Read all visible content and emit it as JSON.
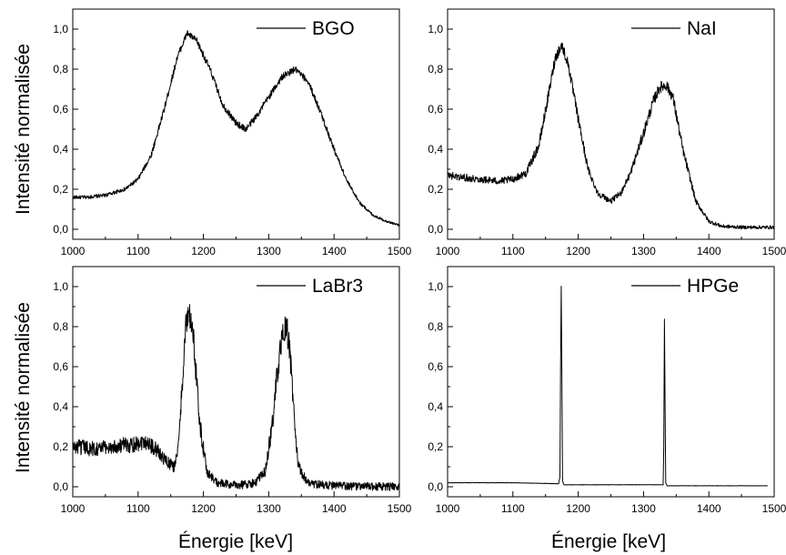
{
  "figure": {
    "ylabel": "Intensité normalisée",
    "xlabel": "Énergie [keV]"
  },
  "chart_data": [
    {
      "type": "line",
      "legend": "BGO",
      "legend_position": "top-right",
      "xlim": [
        1000,
        1500
      ],
      "ylim": [
        -0.05,
        1.1
      ],
      "xticks": [
        "1000",
        "1100",
        "1200",
        "1300",
        "1400",
        "1500"
      ],
      "yticks": [
        "0,0",
        "0,2",
        "0,4",
        "0,6",
        "0,8",
        "1,0"
      ],
      "grid": false,
      "noise": 0.012,
      "series": [
        {
          "name": "BGO",
          "x": [
            1000,
            1020,
            1050,
            1080,
            1100,
            1120,
            1140,
            1160,
            1175,
            1190,
            1210,
            1230,
            1250,
            1265,
            1280,
            1300,
            1320,
            1340,
            1360,
            1380,
            1400,
            1420,
            1440,
            1460,
            1480,
            1500
          ],
          "y": [
            0.16,
            0.16,
            0.17,
            0.2,
            0.25,
            0.37,
            0.6,
            0.86,
            0.98,
            0.94,
            0.8,
            0.62,
            0.53,
            0.5,
            0.56,
            0.66,
            0.76,
            0.8,
            0.74,
            0.58,
            0.4,
            0.24,
            0.13,
            0.07,
            0.04,
            0.02
          ]
        }
      ]
    },
    {
      "type": "line",
      "legend": "NaI",
      "legend_position": "top-right",
      "xlim": [
        1000,
        1500
      ],
      "ylim": [
        -0.05,
        1.1
      ],
      "xticks": [
        "1000",
        "1100",
        "1200",
        "1300",
        "1400",
        "1500"
      ],
      "yticks": [
        "0,0",
        "0,2",
        "0,4",
        "0,6",
        "0,8",
        "1,0"
      ],
      "grid": false,
      "noise": 0.02,
      "series": [
        {
          "name": "NaI",
          "x": [
            1000,
            1020,
            1050,
            1080,
            1100,
            1120,
            1140,
            1155,
            1165,
            1175,
            1185,
            1200,
            1215,
            1230,
            1250,
            1265,
            1280,
            1300,
            1315,
            1325,
            1335,
            1345,
            1360,
            1380,
            1400,
            1420,
            1450,
            1500
          ],
          "y": [
            0.27,
            0.26,
            0.25,
            0.24,
            0.25,
            0.28,
            0.42,
            0.68,
            0.86,
            0.92,
            0.82,
            0.55,
            0.3,
            0.18,
            0.14,
            0.18,
            0.28,
            0.48,
            0.64,
            0.71,
            0.72,
            0.66,
            0.4,
            0.14,
            0.04,
            0.015,
            0.01,
            0.01
          ]
        }
      ]
    },
    {
      "type": "line",
      "legend": "LaBr3",
      "legend_position": "top-right",
      "xlim": [
        1000,
        1500
      ],
      "ylim": [
        -0.05,
        1.1
      ],
      "xticks": [
        "1000",
        "1100",
        "1200",
        "1300",
        "1400",
        "1500"
      ],
      "yticks": [
        "0,0",
        "0,2",
        "0,4",
        "0,6",
        "0,8",
        "1,0"
      ],
      "grid": false,
      "noise": 0.05,
      "series": [
        {
          "name": "LaBr3",
          "x": [
            1000,
            1030,
            1060,
            1090,
            1110,
            1130,
            1145,
            1155,
            1162,
            1168,
            1173,
            1178,
            1183,
            1188,
            1195,
            1205,
            1220,
            1240,
            1260,
            1280,
            1295,
            1305,
            1315,
            1322,
            1327,
            1332,
            1338,
            1345,
            1360,
            1380,
            1400,
            1440,
            1500
          ],
          "y": [
            0.2,
            0.19,
            0.2,
            0.21,
            0.23,
            0.18,
            0.12,
            0.1,
            0.2,
            0.55,
            0.8,
            0.86,
            0.8,
            0.6,
            0.3,
            0.08,
            0.02,
            0.01,
            0.01,
            0.02,
            0.08,
            0.3,
            0.62,
            0.76,
            0.8,
            0.7,
            0.4,
            0.1,
            0.02,
            0.01,
            0.005,
            0.002,
            0.0
          ]
        }
      ]
    },
    {
      "type": "line",
      "legend": "HPGe",
      "legend_position": "top-right",
      "xlim": [
        1000,
        1500
      ],
      "ylim": [
        -0.05,
        1.1
      ],
      "xticks": [
        "1000",
        "1100",
        "1200",
        "1300",
        "1400",
        "1500"
      ],
      "yticks": [
        "0,0",
        "0,2",
        "0,4",
        "0,6",
        "0,8",
        "1,0"
      ],
      "grid": false,
      "noise": 0.002,
      "series": [
        {
          "name": "HPGe",
          "x": [
            1000,
            1100,
            1170,
            1172,
            1173,
            1174,
            1175,
            1176,
            1178,
            1200,
            1300,
            1330,
            1331,
            1332,
            1333,
            1334,
            1336,
            1400,
            1490
          ],
          "y": [
            0.02,
            0.02,
            0.015,
            0.05,
            0.6,
            1.0,
            0.55,
            0.03,
            0.01,
            0.01,
            0.01,
            0.01,
            0.2,
            0.84,
            0.4,
            0.02,
            0.005,
            0.005,
            0.005
          ]
        }
      ]
    }
  ]
}
